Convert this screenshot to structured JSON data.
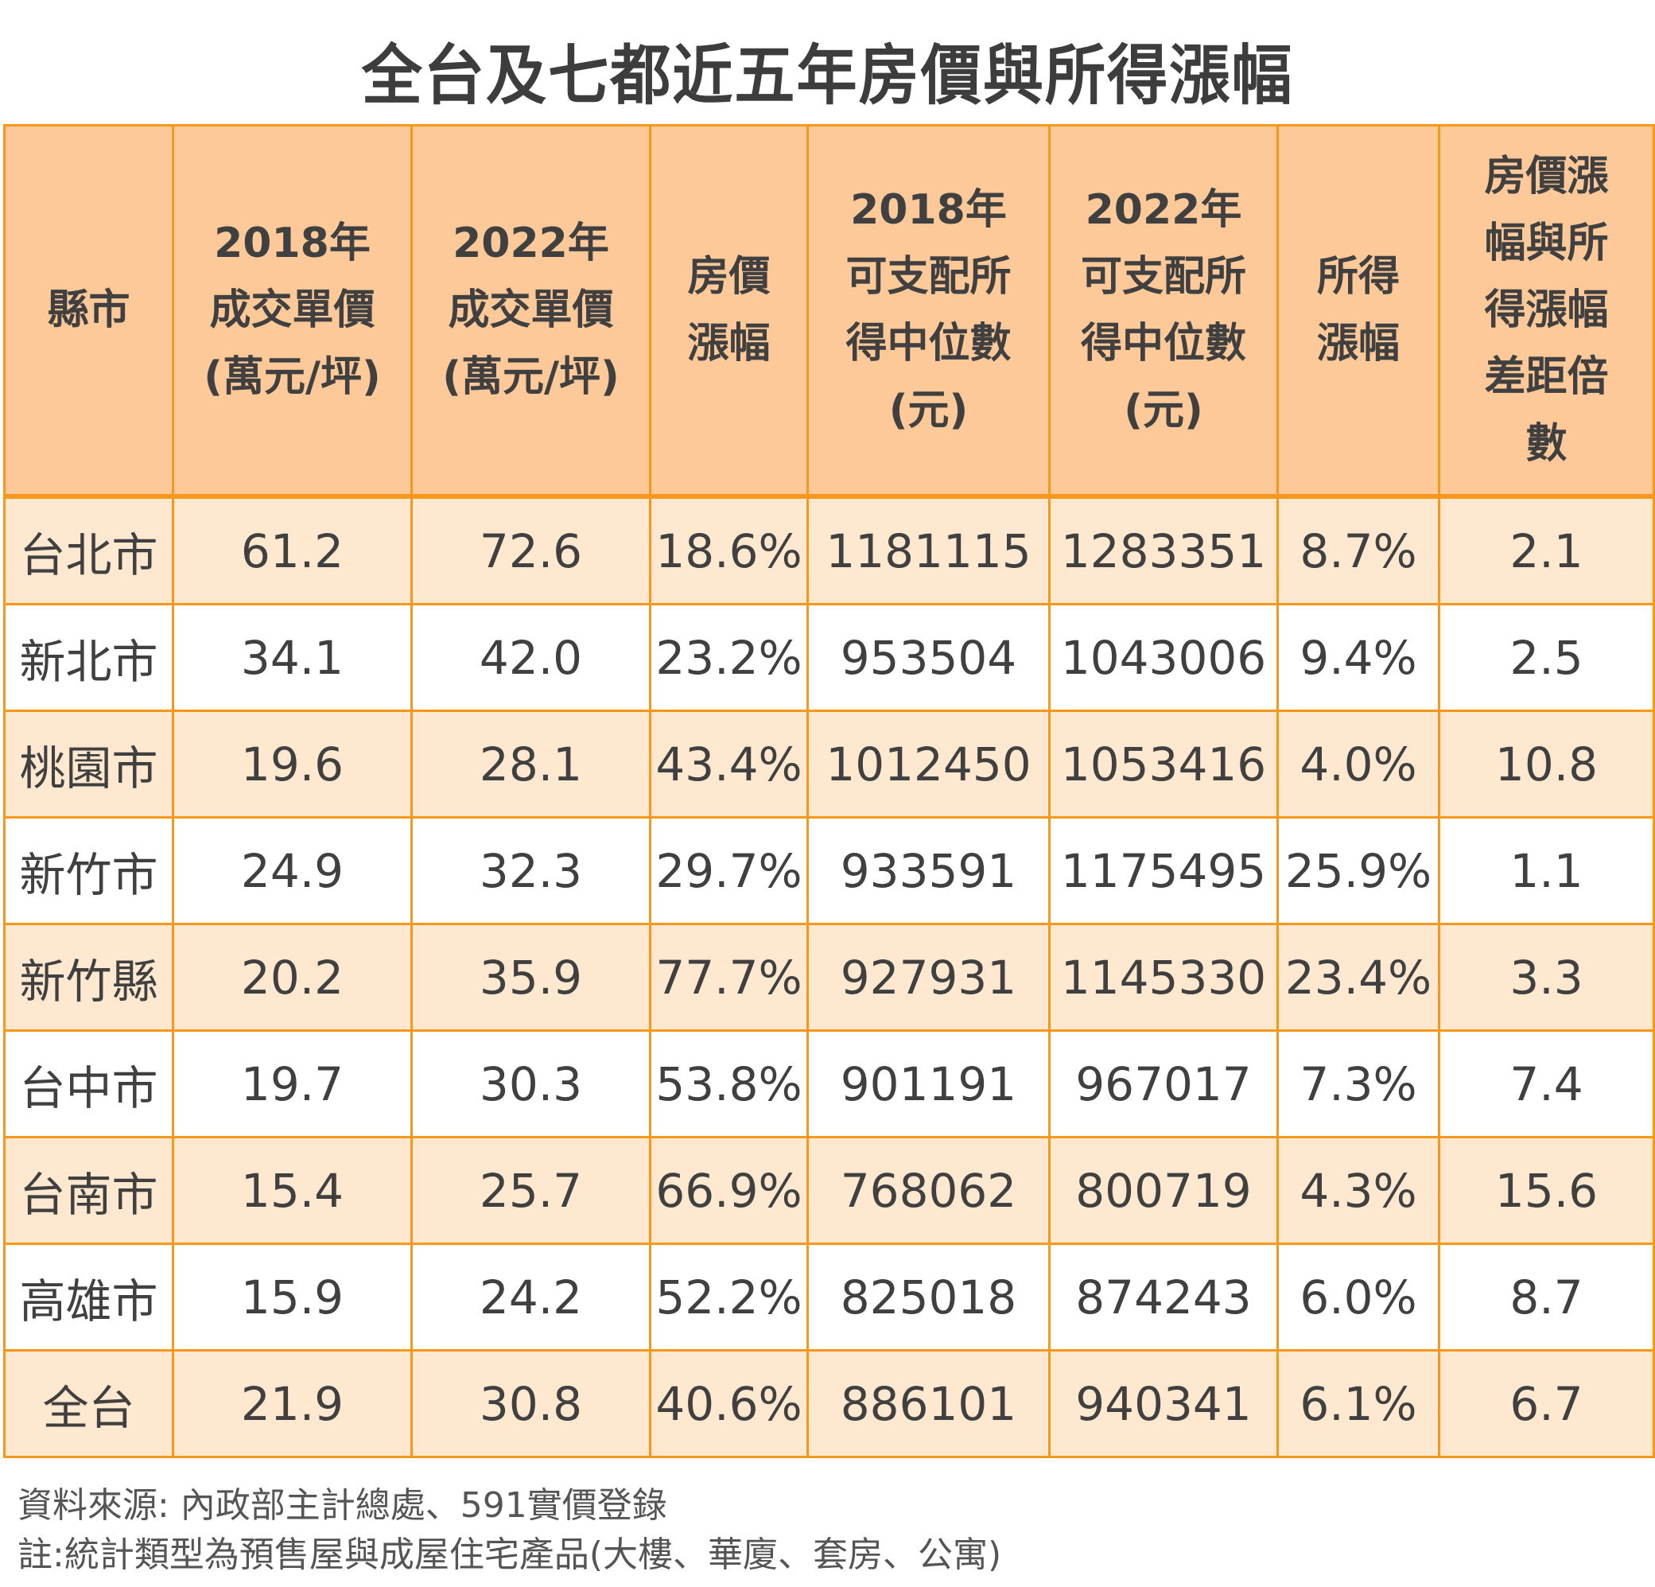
{
  "title": "全台及七都近五年房價與所得漲幅",
  "colors": {
    "header_bg": "#fdc999",
    "row_odd_bg": "#fee8cf",
    "row_even_bg": "#ffffff",
    "border": "#f7981d",
    "text": "#404040"
  },
  "table": {
    "headers": [
      {
        "lines": [
          "縣市"
        ]
      },
      {
        "lines": [
          "2018年",
          "成交單價",
          "(萬元/坪)"
        ]
      },
      {
        "lines": [
          "2022年",
          "成交單價",
          "(萬元/坪)"
        ]
      },
      {
        "lines": [
          "房價",
          "漲幅"
        ]
      },
      {
        "lines": [
          "2018年",
          "可支配所",
          "得中位數",
          "(元)"
        ]
      },
      {
        "lines": [
          "2022年",
          "可支配所",
          "得中位數",
          "(元)"
        ]
      },
      {
        "lines": [
          "所得",
          "漲幅"
        ]
      },
      {
        "lines": [
          "房價漲",
          "幅與所",
          "得漲幅",
          "差距倍",
          "數"
        ]
      }
    ],
    "rows": [
      [
        "台北市",
        "61.2",
        "72.6",
        "18.6%",
        "1181115",
        "1283351",
        "8.7%",
        "2.1"
      ],
      [
        "新北市",
        "34.1",
        "42.0",
        "23.2%",
        "953504",
        "1043006",
        "9.4%",
        "2.5"
      ],
      [
        "桃園市",
        "19.6",
        "28.1",
        "43.4%",
        "1012450",
        "1053416",
        "4.0%",
        "10.8"
      ],
      [
        "新竹市",
        "24.9",
        "32.3",
        "29.7%",
        "933591",
        "1175495",
        "25.9%",
        "1.1"
      ],
      [
        "新竹縣",
        "20.2",
        "35.9",
        "77.7%",
        "927931",
        "1145330",
        "23.4%",
        "3.3"
      ],
      [
        "台中市",
        "19.7",
        "30.3",
        "53.8%",
        "901191",
        "967017",
        "7.3%",
        "7.4"
      ],
      [
        "台南市",
        "15.4",
        "25.7",
        "66.9%",
        "768062",
        "800719",
        "4.3%",
        "15.6"
      ],
      [
        "高雄市",
        "15.9",
        "24.2",
        "52.2%",
        "825018",
        "874243",
        "6.0%",
        "8.7"
      ],
      [
        "全台",
        "21.9",
        "30.8",
        "40.6%",
        "886101",
        "940341",
        "6.1%",
        "6.7"
      ]
    ]
  },
  "notes": {
    "source": "資料來源: 內政部主計總處、591實價登錄",
    "remark": "註:統計類型為預售屋與成屋住宅產品(大樓、華廈、套房、公寓)"
  }
}
